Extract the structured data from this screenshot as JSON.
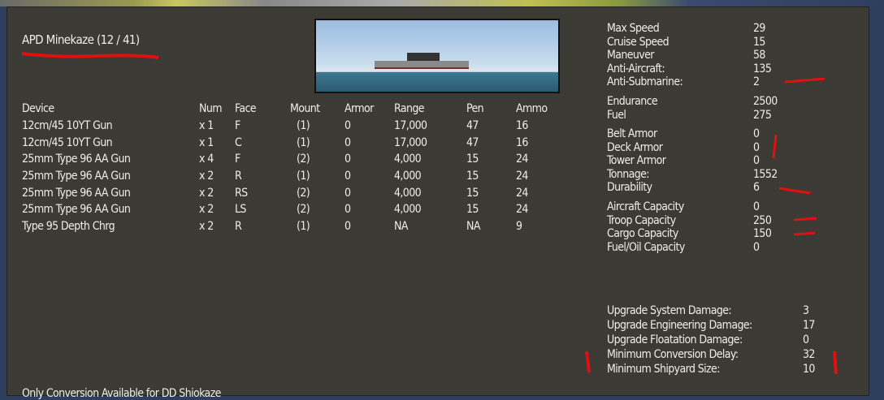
{
  "title": "APD Minekaze (12 / 41)",
  "columns": [
    "Device",
    "Num",
    "Face",
    "Mount",
    "Armor",
    "Range",
    "Pen",
    "Ammo"
  ],
  "devices": [
    [
      "12cm/45 10YT Gun",
      "x 1",
      "F",
      "(1)",
      "0",
      "17,000",
      "47",
      "16"
    ],
    [
      "12cm/45 10YT Gun",
      "x 1",
      "C",
      "(1)",
      "0",
      "17,000",
      "47",
      "16"
    ],
    [
      "25mm Type 96 AA Gun",
      "x 4",
      "F",
      "(2)",
      "0",
      "4,000",
      "15",
      "24"
    ],
    [
      "25mm Type 96 AA Gun",
      "x 2",
      "R",
      "(1)",
      "0",
      "4,000",
      "15",
      "24"
    ],
    [
      "25mm Type 96 AA Gun",
      "x 2",
      "RS",
      "(2)",
      "0",
      "4,000",
      "15",
      "24"
    ],
    [
      "25mm Type 96 AA Gun",
      "x 2",
      "LS",
      "(2)",
      "0",
      "4,000",
      "15",
      "24"
    ],
    [
      "Type 95 Depth Chrg",
      "x 2",
      "R",
      "(1)",
      "0",
      "NA",
      "NA",
      "9"
    ]
  ],
  "stats": [
    [
      [
        "Max Speed",
        "29"
      ],
      [
        "Cruise Speed",
        "15"
      ],
      [
        "Maneuver",
        "58"
      ],
      [
        "Anti-Aircraft:",
        "135"
      ],
      [
        "Anti-Submarine:",
        "2"
      ]
    ],
    [
      [
        "Endurance",
        "2500"
      ],
      [
        "Fuel",
        "275"
      ]
    ],
    [
      [
        "Belt Armor",
        "0"
      ],
      [
        "Deck Armor",
        "0"
      ],
      [
        "Tower Armor",
        "0"
      ],
      [
        "Tonnage:",
        "1552"
      ],
      [
        "Durability",
        "6"
      ]
    ],
    [
      [
        "Aircraft Capacity",
        "0"
      ],
      [
        "Troop Capacity",
        "250"
      ],
      [
        "Cargo Capacity",
        "150"
      ],
      [
        "Fuel/Oil Capacity",
        "0"
      ]
    ]
  ],
  "upgrade": [
    [
      "Upgrade System Damage:",
      "3"
    ],
    [
      "Upgrade Engineering Damage:",
      "17"
    ],
    [
      "Upgrade Floatation Damage:",
      "0"
    ],
    [
      "Minimum Conversion Delay:",
      "32"
    ],
    [
      "Minimum Shipyard Size:",
      "10"
    ]
  ],
  "footer": "Only Conversion Available for DD Shiokaze",
  "colors": {
    "panel": "#3b3a35",
    "text": "#eeeee8",
    "annotation": "#e01010"
  }
}
